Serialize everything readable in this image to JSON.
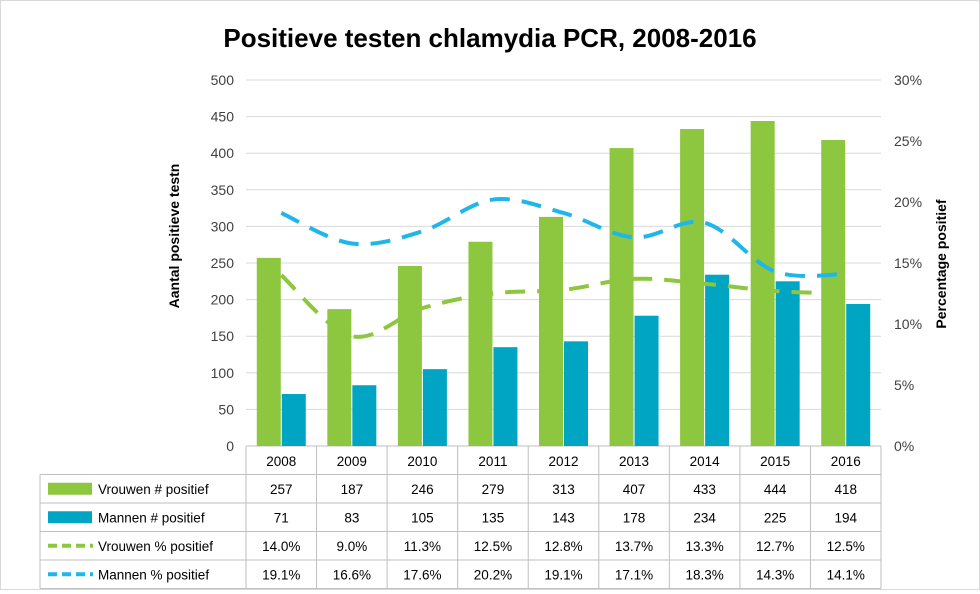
{
  "chart_data": {
    "type": "bar",
    "title": "Positieve testen chlamydia PCR, 2008-2016",
    "ylabel": "Aantal positieve testn",
    "y2label": "Percentage positief",
    "ylim": [
      0,
      500
    ],
    "y2lim": [
      0,
      30
    ],
    "yticks": [
      "0",
      "50",
      "100",
      "150",
      "200",
      "250",
      "300",
      "350",
      "400",
      "450",
      "500"
    ],
    "y2ticks": [
      "0%",
      "5%",
      "10%",
      "15%",
      "20%",
      "25%",
      "30%"
    ],
    "categories": [
      "2008",
      "2009",
      "2010",
      "2011",
      "2012",
      "2013",
      "2014",
      "2015",
      "2016"
    ],
    "grid": "horizontal",
    "legend": "data-table",
    "series": [
      {
        "name": "Vrouwen # positief",
        "kind": "bar",
        "axis": "left",
        "color": "#8dc63f",
        "values": [
          257,
          187,
          246,
          279,
          313,
          407,
          433,
          444,
          418
        ],
        "labels": [
          "257",
          "187",
          "246",
          "279",
          "313",
          "407",
          "433",
          "444",
          "418"
        ]
      },
      {
        "name": "Mannen # positief",
        "kind": "bar",
        "axis": "left",
        "color": "#00a5c3",
        "values": [
          71,
          83,
          105,
          135,
          143,
          178,
          234,
          225,
          194
        ],
        "labels": [
          "71",
          "83",
          "105",
          "135",
          "143",
          "178",
          "234",
          "225",
          "194"
        ]
      },
      {
        "name": "Vrouwen % positief",
        "kind": "line",
        "axis": "right",
        "color": "#8dc63f",
        "values": [
          14.0,
          9.0,
          11.3,
          12.5,
          12.8,
          13.7,
          13.3,
          12.7,
          12.5
        ],
        "labels": [
          "14.0%",
          "9.0%",
          "11.3%",
          "12.5%",
          "12.8%",
          "13.7%",
          "13.3%",
          "12.7%",
          "12.5%"
        ]
      },
      {
        "name": "Mannen % positief",
        "kind": "line",
        "axis": "right",
        "color": "#1fb6ea",
        "values": [
          19.1,
          16.6,
          17.6,
          20.2,
          19.1,
          17.1,
          18.3,
          14.3,
          14.1
        ],
        "labels": [
          "19.1%",
          "16.6%",
          "17.6%",
          "20.2%",
          "19.1%",
          "17.1%",
          "18.3%",
          "14.3%",
          "14.1%"
        ]
      }
    ]
  }
}
